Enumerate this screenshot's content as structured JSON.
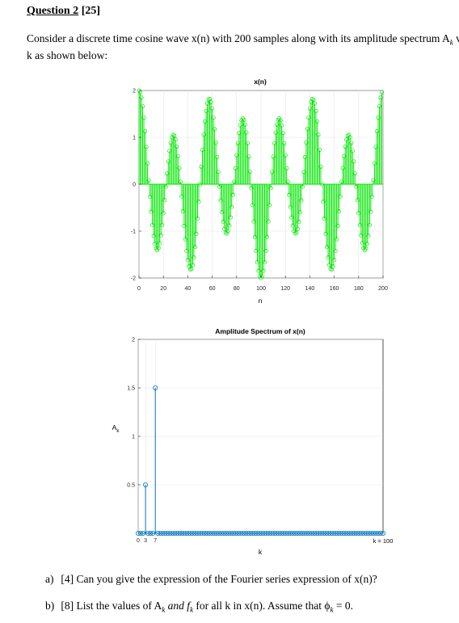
{
  "question": {
    "number": "Question 2",
    "marks": "[25]",
    "intro_line1": "Consider a discrete time cosine wave x(n) with 200 samples along with its amplitude spectrum A",
    "intro_sub": "k",
    "intro_tail": " v",
    "intro_line2": "k as shown below:"
  },
  "charts": {
    "signal": {
      "title": "x(n)",
      "xlabel": "n",
      "xticks": [
        "0",
        "20",
        "40",
        "60",
        "80",
        "100",
        "120",
        "140",
        "160",
        "180",
        "200"
      ],
      "yticks": [
        "-2",
        "-1",
        "0",
        "1",
        "2"
      ]
    },
    "spectrum": {
      "title": "Amplitude Spectrum of x(n)",
      "xlabel": "k",
      "ylabel": "A",
      "ylabel_sub": "k",
      "xticks": [
        "0",
        "3",
        "7"
      ],
      "yticks": [
        "0.5",
        "1",
        "1.5",
        "2"
      ],
      "end_label": "k = 100"
    }
  },
  "chart_data": [
    {
      "type": "stem",
      "title": "x(n)",
      "xlabel": "n",
      "xlim": [
        0,
        200
      ],
      "ylim": [
        -2,
        2
      ],
      "n_samples": 200,
      "components": [
        {
          "k": 3,
          "amplitude": 0.5
        },
        {
          "k": 7,
          "amplitude": 1.5
        }
      ],
      "color": "#00e600",
      "grid": true
    },
    {
      "type": "stem",
      "title": "Amplitude Spectrum of x(n)",
      "xlabel": "k",
      "ylabel": "A_k",
      "xlim": [
        0,
        100
      ],
      "ylim": [
        0,
        2
      ],
      "points": [
        {
          "k": 3,
          "value": 0.5
        },
        {
          "k": 7,
          "value": 1.5
        }
      ],
      "other_values": 0,
      "color": "#0072bd",
      "grid": true
    }
  ],
  "questions": {
    "a": {
      "label": "a)",
      "marks": "[4]",
      "text": " Can you give the expression of the Fourier series expression of x(n)?"
    },
    "b": {
      "label": "b)",
      "marks": "[8]",
      "text_pre": " List the values of A",
      "sub1": "k",
      "text_mid": " and f",
      "sub2": "k",
      "text_post": " for all k in x(n). Assume that ϕ",
      "sub3": "k",
      "text_end": " = 0."
    }
  }
}
